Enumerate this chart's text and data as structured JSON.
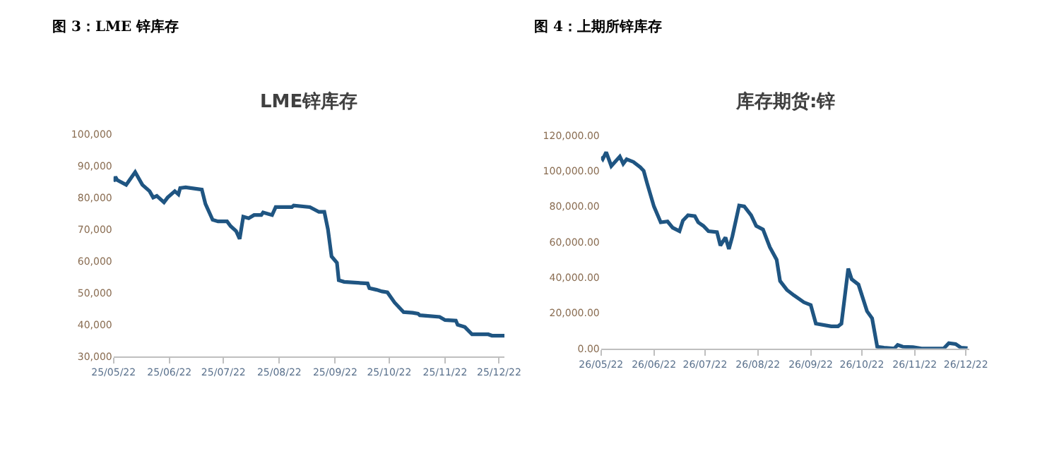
{
  "chart_data": [
    {
      "type": "line",
      "title": "LME锌库存",
      "annotations": [
        "图 3：LME 锌库存"
      ],
      "x": [
        "2022-05-25",
        "2022-05-26",
        "2022-05-27",
        "2022-06-01",
        "2022-06-06",
        "2022-06-10",
        "2022-06-14",
        "2022-06-16",
        "2022-06-18",
        "2022-06-22",
        "2022-06-24",
        "2022-06-28",
        "2022-06-30",
        "2022-07-01",
        "2022-07-04",
        "2022-07-13",
        "2022-07-15",
        "2022-07-19",
        "2022-07-22",
        "2022-07-27",
        "2022-07-29",
        "2022-08-01",
        "2022-08-03",
        "2022-08-05",
        "2022-08-08",
        "2022-08-11",
        "2022-08-15",
        "2022-08-16",
        "2022-08-21",
        "2022-08-23",
        "2022-09-01",
        "2022-09-02",
        "2022-09-11",
        "2022-09-16",
        "2022-09-19",
        "2022-09-21",
        "2022-09-23",
        "2022-09-26",
        "2022-09-27",
        "2022-09-30",
        "2022-10-13",
        "2022-10-14",
        "2022-10-18",
        "2022-10-21",
        "2022-10-24",
        "2022-10-28",
        "2022-11-02",
        "2022-11-07",
        "2022-11-10",
        "2022-11-11",
        "2022-11-22",
        "2022-11-25",
        "2022-12-01",
        "2022-12-02",
        "2022-12-06",
        "2022-12-10",
        "2022-12-19",
        "2022-12-21",
        "2022-12-28"
      ],
      "series": [
        {
          "color": "#1f5582",
          "values": [
            85000,
            86500,
            85500,
            84000,
            88000,
            84000,
            82000,
            80000,
            80500,
            78500,
            80000,
            82000,
            81000,
            83000,
            83200,
            82500,
            78000,
            73000,
            72500,
            72500,
            71000,
            69500,
            67000,
            74000,
            73500,
            74500,
            74500,
            75300,
            74500,
            77000,
            77000,
            77500,
            77000,
            75500,
            75500,
            70000,
            61500,
            59500,
            54000,
            53500,
            53000,
            51500,
            51000,
            50500,
            50200,
            47000,
            44000,
            43800,
            43500,
            43000,
            42500,
            41500,
            41300,
            40000,
            39300,
            37000,
            37000,
            36600,
            36600
          ]
        }
      ],
      "xlim": [
        "2022-05-25",
        "2022-12-28"
      ],
      "xticks": [
        {
          "value": "2022-05-25",
          "label": "25/05/22"
        },
        {
          "value": "2022-06-25",
          "label": "25/06/22"
        },
        {
          "value": "2022-07-25",
          "label": "25/07/22"
        },
        {
          "value": "2022-08-25",
          "label": "25/08/22"
        },
        {
          "value": "2022-09-25",
          "label": "25/09/22"
        },
        {
          "value": "2022-10-25",
          "label": "25/10/22"
        },
        {
          "value": "2022-11-25",
          "label": "25/11/22"
        },
        {
          "value": "2022-12-25",
          "label": "25/12/22"
        }
      ],
      "ylim": [
        30000,
        100000
      ],
      "yticks": [
        {
          "value": 30000,
          "label": "30,000"
        },
        {
          "value": 40000,
          "label": "40,000"
        },
        {
          "value": 50000,
          "label": "50,000"
        },
        {
          "value": 60000,
          "label": "60,000"
        },
        {
          "value": 70000,
          "label": "70,000"
        },
        {
          "value": 80000,
          "label": "80,000"
        },
        {
          "value": 90000,
          "label": "90,000"
        },
        {
          "value": 100000,
          "label": "100,000"
        }
      ],
      "marker": "none",
      "line_style": "solid"
    },
    {
      "type": "line",
      "title": "库存期货:锌",
      "annotations": [
        "图 4：上期所锌库存"
      ],
      "x": [
        "2022-05-26",
        "2022-05-27",
        "2022-05-29",
        "2022-06-01",
        "2022-06-06",
        "2022-06-08",
        "2022-06-10",
        "2022-06-14",
        "2022-06-18",
        "2022-06-20",
        "2022-06-22",
        "2022-06-26",
        "2022-06-30",
        "2022-07-04",
        "2022-07-07",
        "2022-07-11",
        "2022-07-13",
        "2022-07-16",
        "2022-07-20",
        "2022-07-22",
        "2022-07-25",
        "2022-07-28",
        "2022-08-02",
        "2022-08-04",
        "2022-08-07",
        "2022-08-09",
        "2022-08-11",
        "2022-08-15",
        "2022-08-18",
        "2022-08-22",
        "2022-08-25",
        "2022-08-29",
        "2022-09-02",
        "2022-09-06",
        "2022-09-08",
        "2022-09-12",
        "2022-09-16",
        "2022-09-22",
        "2022-09-26",
        "2022-09-29",
        "2022-10-08",
        "2022-10-12",
        "2022-10-14",
        "2022-10-18",
        "2022-10-20",
        "2022-10-24",
        "2022-10-29",
        "2022-11-01",
        "2022-11-04",
        "2022-11-08",
        "2022-11-14",
        "2022-11-16",
        "2022-11-19",
        "2022-11-25",
        "2022-11-30",
        "2022-12-13",
        "2022-12-16",
        "2022-12-20",
        "2022-12-23",
        "2022-12-27"
      ],
      "series": [
        {
          "color": "#1f5582",
          "values": [
            108000,
            106600,
            110500,
            102700,
            108000,
            104000,
            106500,
            105000,
            102000,
            100000,
            93000,
            80000,
            71000,
            71500,
            68000,
            66000,
            72000,
            75000,
            74500,
            71000,
            69000,
            66000,
            65500,
            58000,
            62500,
            56000,
            63000,
            80500,
            80000,
            75000,
            69000,
            67000,
            57000,
            50000,
            38000,
            33000,
            30000,
            26000,
            24500,
            14000,
            12500,
            12500,
            14000,
            45000,
            39000,
            36000,
            21000,
            17000,
            1000,
            500,
            0,
            2000,
            1000,
            800,
            0,
            0,
            3000,
            2500,
            500,
            200
          ]
        }
      ],
      "xlim": [
        "2022-05-26",
        "2022-12-28"
      ],
      "xticks": [
        {
          "value": "2022-05-26",
          "label": "26/05/22"
        },
        {
          "value": "2022-06-26",
          "label": "26/06/22"
        },
        {
          "value": "2022-07-26",
          "label": "26/07/22"
        },
        {
          "value": "2022-08-26",
          "label": "26/08/22"
        },
        {
          "value": "2022-09-26",
          "label": "26/09/22"
        },
        {
          "value": "2022-10-26",
          "label": "26/10/22"
        },
        {
          "value": "2022-11-26",
          "label": "26/11/22"
        },
        {
          "value": "2022-12-26",
          "label": "26/12/22"
        }
      ],
      "ylim": [
        0,
        120000
      ],
      "yticks": [
        {
          "value": 0,
          "label": "0.00"
        },
        {
          "value": 20000,
          "label": "20,000.00"
        },
        {
          "value": 40000,
          "label": "40,000.00"
        },
        {
          "value": 60000,
          "label": "60,000.00"
        },
        {
          "value": 80000,
          "label": "80,000.00"
        },
        {
          "value": 100000,
          "label": "100,000.00"
        },
        {
          "value": 120000,
          "label": "120,000.00"
        }
      ],
      "marker": "none",
      "line_style": "solid"
    }
  ]
}
